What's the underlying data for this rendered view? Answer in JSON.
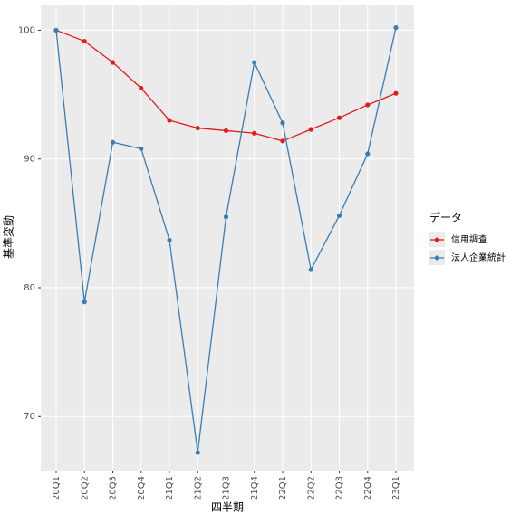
{
  "chart_data": {
    "type": "line",
    "x_label": "四半期",
    "y_label": "基準変動",
    "legend_title": "データ",
    "categories": [
      "20Q1",
      "20Q2",
      "20Q3",
      "20Q4",
      "21Q1",
      "21Q2",
      "21Q3",
      "21Q4",
      "22Q1",
      "22Q2",
      "22Q3",
      "22Q4",
      "23Q1"
    ],
    "series": [
      {
        "name": "信用調査",
        "color": "#e41a1c",
        "values": [
          100,
          99.15,
          97.5,
          95.5,
          93.0,
          92.4,
          92.2,
          92.0,
          91.4,
          92.3,
          93.2,
          94.2,
          95.1
        ]
      },
      {
        "name": "法人企業統計",
        "color": "#377eb8",
        "values": [
          100,
          78.9,
          91.3,
          90.8,
          83.7,
          67.2,
          85.5,
          97.5,
          92.8,
          81.4,
          85.6,
          90.4,
          100.2
        ]
      }
    ],
    "ylim": [
      65.8,
      102
    ],
    "yticks": [
      70,
      80,
      90,
      100
    ],
    "grid": true,
    "legend": "right"
  }
}
